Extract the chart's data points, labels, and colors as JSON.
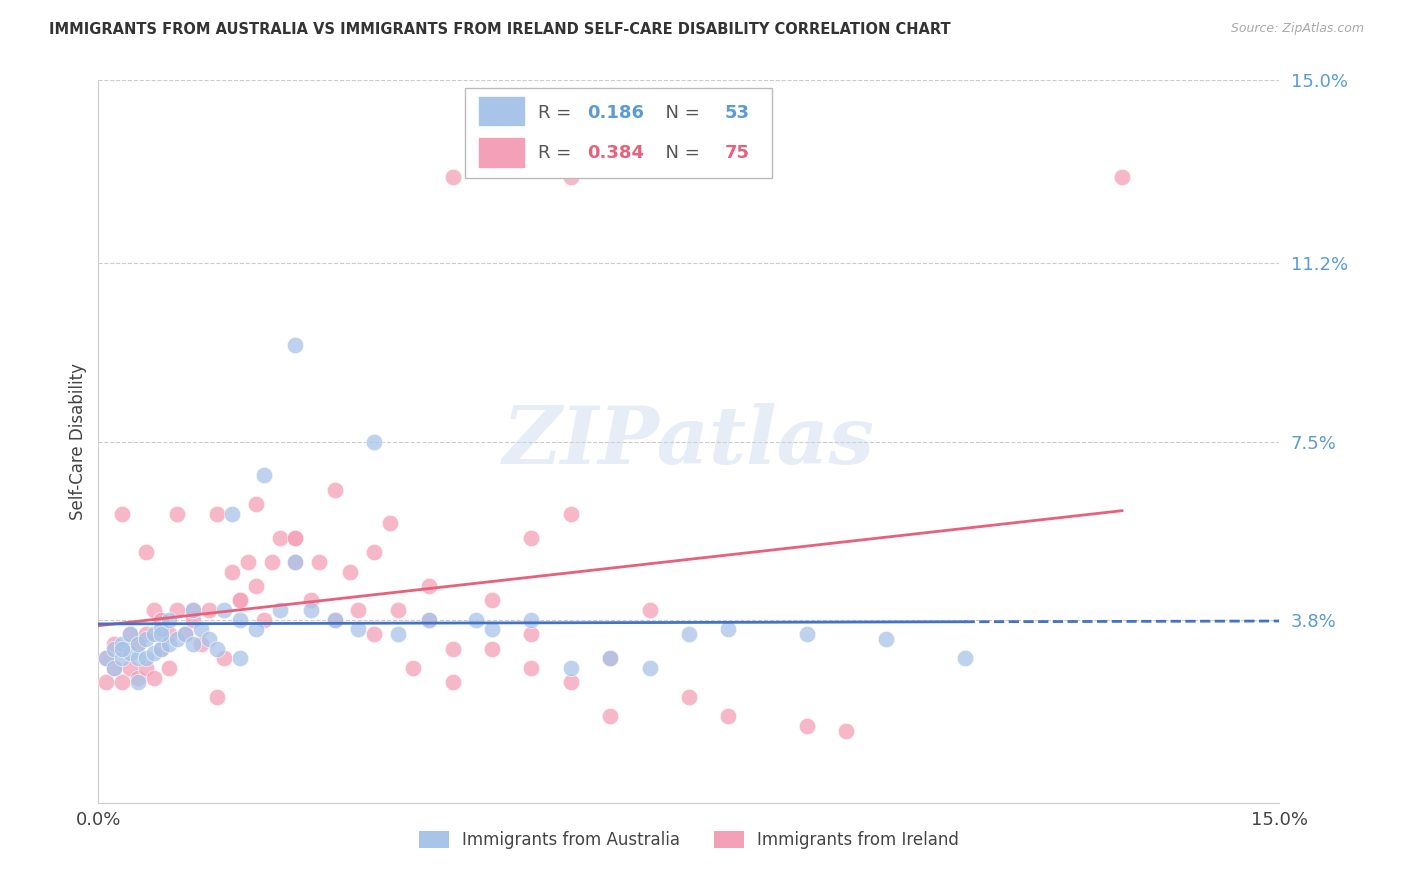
{
  "title": "IMMIGRANTS FROM AUSTRALIA VS IMMIGRANTS FROM IRELAND SELF-CARE DISABILITY CORRELATION CHART",
  "source": "Source: ZipAtlas.com",
  "ylabel": "Self-Care Disability",
  "xlim": [
    0.0,
    0.15
  ],
  "ylim": [
    0.0,
    0.15
  ],
  "ytick_labels_right": [
    "15.0%",
    "11.2%",
    "7.5%",
    "3.8%"
  ],
  "ytick_values_right": [
    0.15,
    0.112,
    0.075,
    0.038
  ],
  "australia_color": "#a8c4e8",
  "ireland_color": "#f4a0b8",
  "trendline_australia_color": "#4472c4",
  "trendline_ireland_color": "#e8607a",
  "R_australia": "0.186",
  "N_australia": "53",
  "R_ireland": "0.384",
  "N_ireland": "75",
  "legend_R_color_aus": "#5b9bd5",
  "legend_N_color_aus": "#5b9bd5",
  "legend_R_color_ire": "#e8607a",
  "legend_N_color_ire": "#e8607a",
  "australia_x": [
    0.001,
    0.002,
    0.002,
    0.003,
    0.003,
    0.004,
    0.004,
    0.005,
    0.005,
    0.006,
    0.006,
    0.007,
    0.007,
    0.008,
    0.008,
    0.009,
    0.009,
    0.01,
    0.011,
    0.012,
    0.013,
    0.014,
    0.015,
    0.016,
    0.017,
    0.018,
    0.02,
    0.021,
    0.023,
    0.025,
    0.027,
    0.03,
    0.033,
    0.038,
    0.042,
    0.048,
    0.05,
    0.055,
    0.06,
    0.065,
    0.07,
    0.075,
    0.08,
    0.09,
    0.1,
    0.11,
    0.003,
    0.005,
    0.008,
    0.012,
    0.018,
    0.025,
    0.035
  ],
  "australia_y": [
    0.03,
    0.028,
    0.032,
    0.03,
    0.033,
    0.031,
    0.035,
    0.03,
    0.033,
    0.03,
    0.034,
    0.031,
    0.035,
    0.032,
    0.036,
    0.033,
    0.038,
    0.034,
    0.035,
    0.033,
    0.036,
    0.034,
    0.032,
    0.04,
    0.06,
    0.038,
    0.036,
    0.068,
    0.04,
    0.05,
    0.04,
    0.038,
    0.036,
    0.035,
    0.038,
    0.038,
    0.036,
    0.038,
    0.028,
    0.03,
    0.028,
    0.035,
    0.036,
    0.035,
    0.034,
    0.03,
    0.032,
    0.025,
    0.035,
    0.04,
    0.03,
    0.095,
    0.075
  ],
  "ireland_x": [
    0.001,
    0.001,
    0.002,
    0.002,
    0.003,
    0.003,
    0.004,
    0.004,
    0.005,
    0.005,
    0.006,
    0.006,
    0.007,
    0.007,
    0.008,
    0.008,
    0.009,
    0.009,
    0.01,
    0.011,
    0.012,
    0.013,
    0.014,
    0.015,
    0.016,
    0.017,
    0.018,
    0.019,
    0.02,
    0.021,
    0.022,
    0.023,
    0.025,
    0.027,
    0.028,
    0.03,
    0.032,
    0.033,
    0.035,
    0.037,
    0.04,
    0.042,
    0.045,
    0.05,
    0.055,
    0.06,
    0.065,
    0.07,
    0.075,
    0.08,
    0.09,
    0.095,
    0.003,
    0.006,
    0.01,
    0.015,
    0.02,
    0.025,
    0.03,
    0.038,
    0.045,
    0.055,
    0.065,
    0.008,
    0.012,
    0.018,
    0.025,
    0.035,
    0.042,
    0.05,
    0.055,
    0.06,
    0.045,
    0.06,
    0.13
  ],
  "ireland_y": [
    0.025,
    0.03,
    0.028,
    0.033,
    0.025,
    0.032,
    0.028,
    0.035,
    0.026,
    0.033,
    0.028,
    0.035,
    0.026,
    0.04,
    0.032,
    0.038,
    0.028,
    0.035,
    0.04,
    0.035,
    0.038,
    0.033,
    0.04,
    0.022,
    0.03,
    0.048,
    0.042,
    0.05,
    0.045,
    0.038,
    0.05,
    0.055,
    0.055,
    0.042,
    0.05,
    0.038,
    0.048,
    0.04,
    0.052,
    0.058,
    0.028,
    0.045,
    0.025,
    0.042,
    0.035,
    0.025,
    0.03,
    0.04,
    0.022,
    0.018,
    0.016,
    0.015,
    0.06,
    0.052,
    0.06,
    0.06,
    0.062,
    0.055,
    0.065,
    0.04,
    0.032,
    0.028,
    0.018,
    0.038,
    0.04,
    0.042,
    0.05,
    0.035,
    0.038,
    0.032,
    0.055,
    0.06,
    0.13,
    0.13,
    0.13
  ]
}
